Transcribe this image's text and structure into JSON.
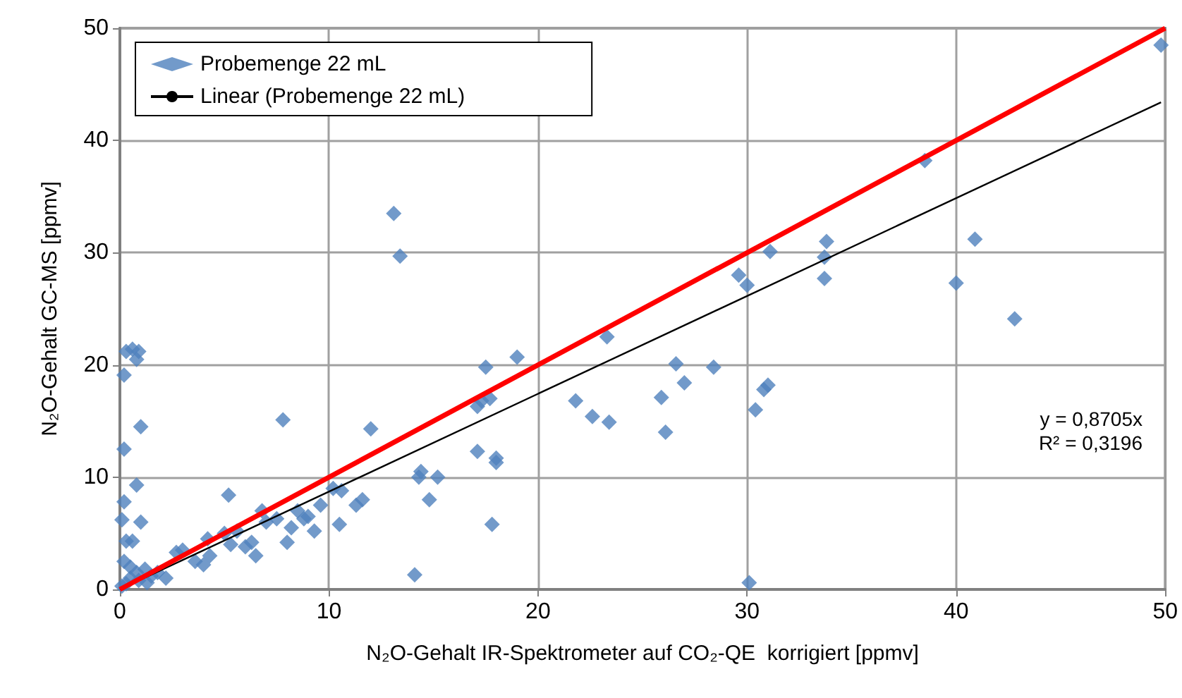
{
  "chart_data": {
    "type": "scatter",
    "xlabel": "N₂O-Gehalt IR-Spektrometer auf CO₂-QE  korrigiert [ppmv]",
    "ylabel": "N₂O-Gehalt GC-MS [ppmv]",
    "xlim": [
      0,
      50
    ],
    "ylim": [
      0,
      50
    ],
    "xticks": [
      0,
      10,
      20,
      30,
      40,
      50
    ],
    "yticks": [
      0,
      10,
      20,
      30,
      40,
      50
    ],
    "grid": true,
    "legend": "top left",
    "annotations": [
      "y = 0,8705x",
      "R² = 0,3196"
    ],
    "series": [
      {
        "name": "Probemenge 22 mL",
        "marker": "diamond",
        "color": "#4f81bd",
        "x": [
          0.3,
          0.6,
          0.9,
          0.8,
          0.2,
          1,
          0.2,
          0.8,
          0.2,
          1,
          0.1,
          0.3,
          0.6,
          0.2,
          0.5,
          0.1,
          0.3,
          0.5,
          0.8,
          1.2,
          1.5,
          1.8,
          2.2,
          0.9,
          1.3,
          2.7,
          3,
          3.6,
          4,
          4.2,
          4.3,
          5,
          5.2,
          5.3,
          5.6,
          6,
          6.3,
          6.5,
          6.8,
          7,
          7.5,
          7.8,
          8,
          8.2,
          8.5,
          8.8,
          9,
          9.3,
          9.6,
          10.2,
          10.6,
          10.5,
          11.3,
          11.6,
          12,
          13.1,
          13.4,
          14.1,
          14.3,
          14.4,
          14.8,
          15.2,
          17.1,
          17.1,
          17.3,
          17.5,
          17.8,
          18,
          18,
          17.7,
          19,
          21.8,
          22.6,
          23.3,
          23.4,
          25.9,
          26.1,
          26.6,
          27,
          28.4,
          29.6,
          30,
          30.4,
          30.8,
          31,
          31.1,
          30.1,
          33.7,
          33.8,
          33.7,
          38.5,
          40,
          40.9,
          42.8,
          49.8
        ],
        "values": [
          21.2,
          21.4,
          21.2,
          20.5,
          19.1,
          14.5,
          12.5,
          9.3,
          7.8,
          6,
          6.2,
          4.3,
          4.3,
          2.5,
          2,
          0.3,
          0.5,
          1,
          1.5,
          1.8,
          1.2,
          1.5,
          1,
          0.8,
          0.6,
          3.3,
          3.5,
          2.5,
          2.2,
          4.5,
          3,
          5,
          8.4,
          4,
          5.2,
          3.8,
          4.2,
          3,
          7,
          6,
          6.3,
          15.1,
          4.2,
          5.5,
          7,
          6.3,
          6.5,
          5.2,
          7.5,
          9,
          8.8,
          5.8,
          7.5,
          8,
          14.3,
          33.5,
          29.7,
          1.3,
          10,
          10.5,
          8,
          10,
          16.3,
          12.3,
          16.8,
          19.8,
          5.8,
          11.7,
          11.3,
          17,
          20.7,
          16.8,
          15.4,
          22.5,
          14.9,
          17.1,
          14,
          20.1,
          18.4,
          19.8,
          28,
          27.1,
          16,
          17.8,
          18.2,
          30.1,
          0.6,
          29.6,
          31,
          27.7,
          38.2,
          27.3,
          31.2,
          24.1,
          48.5
        ]
      },
      {
        "name": "Linear (Probemenge 22 mL)",
        "type": "line",
        "marker": "none",
        "color": "#000000",
        "x": [
          0,
          49.8
        ],
        "values": [
          0,
          43.4
        ]
      },
      {
        "type": "line",
        "marker": "none",
        "color": "#ff0000",
        "x": [
          0,
          50
        ],
        "values": [
          0,
          50
        ]
      }
    ]
  }
}
